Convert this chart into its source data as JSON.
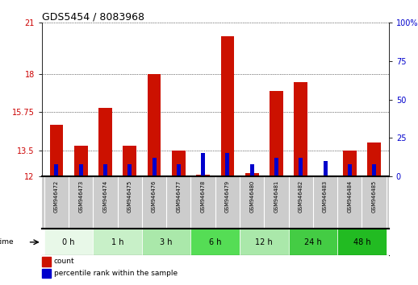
{
  "title": "GDS5454 / 8083968",
  "samples": [
    "GSM946472",
    "GSM946473",
    "GSM946474",
    "GSM946475",
    "GSM946476",
    "GSM946477",
    "GSM946478",
    "GSM946479",
    "GSM946480",
    "GSM946481",
    "GSM946482",
    "GSM946483",
    "GSM946484",
    "GSM946485"
  ],
  "count_values": [
    15.0,
    13.8,
    16.0,
    13.8,
    18.0,
    13.5,
    12.1,
    20.2,
    12.2,
    17.0,
    17.5,
    12.0,
    13.5,
    14.0
  ],
  "percentile_values": [
    8,
    8,
    8,
    8,
    12,
    8,
    15,
    15,
    8,
    12,
    12,
    10,
    8,
    8
  ],
  "y_min": 12,
  "y_max": 21,
  "yticks_left": [
    12,
    13.5,
    15.75,
    18,
    21
  ],
  "yticks_right": [
    0,
    25,
    50,
    75,
    100
  ],
  "ylabel_left_color": "#cc0000",
  "ylabel_right_color": "#0000cc",
  "bar_color_red": "#cc1100",
  "bar_color_blue": "#0000cc",
  "time_groups": [
    {
      "label": "0 h",
      "indices": [
        0,
        1
      ],
      "color": "#e8f8e8"
    },
    {
      "label": "1 h",
      "indices": [
        2,
        3
      ],
      "color": "#c8f0c8"
    },
    {
      "label": "3 h",
      "indices": [
        4,
        5
      ],
      "color": "#aae8aa"
    },
    {
      "label": "6 h",
      "indices": [
        6,
        7
      ],
      "color": "#55dd55"
    },
    {
      "label": "12 h",
      "indices": [
        8,
        9
      ],
      "color": "#aae8aa"
    },
    {
      "label": "24 h",
      "indices": [
        10,
        11
      ],
      "color": "#44cc44"
    },
    {
      "label": "48 h",
      "indices": [
        12,
        13
      ],
      "color": "#22bb22"
    }
  ],
  "bg_color": "#ffffff",
  "sample_bg": "#cccccc"
}
